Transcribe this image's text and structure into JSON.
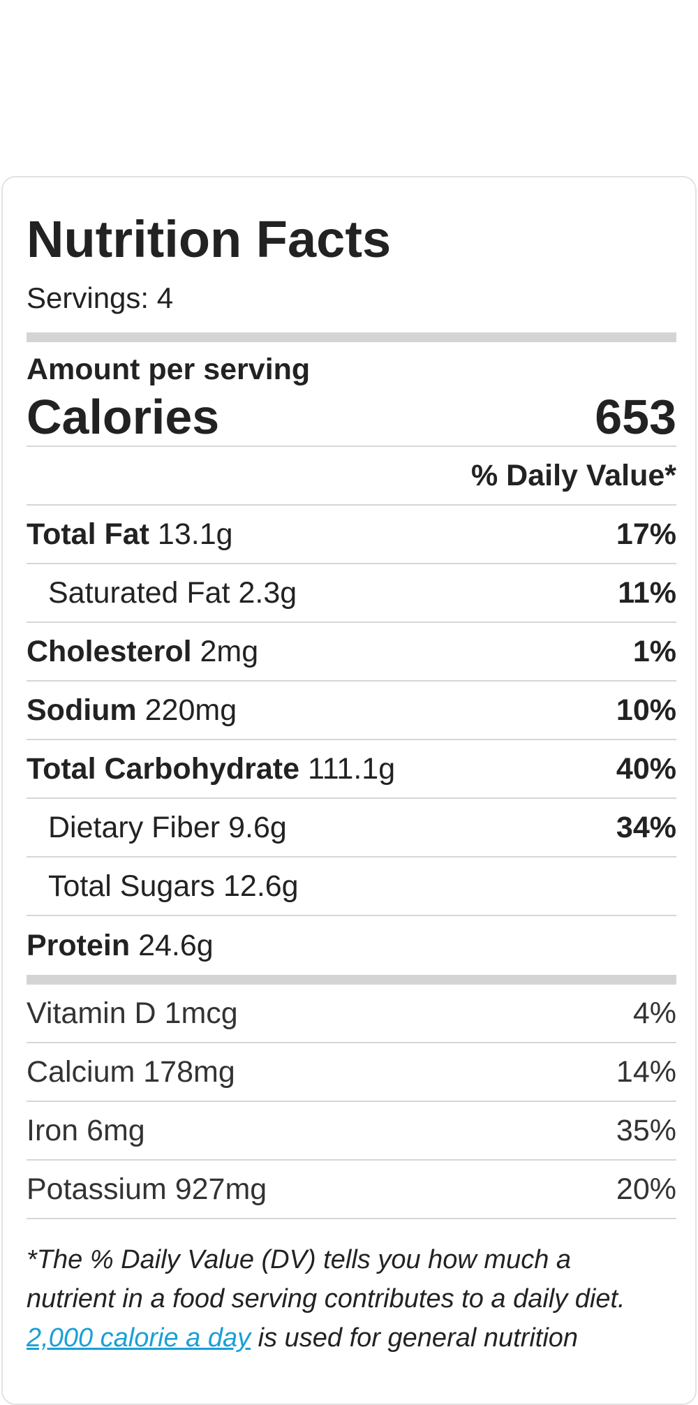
{
  "label": {
    "title": "Nutrition Facts",
    "servings": "Servings: 4",
    "amount_per_serving": "Amount per serving",
    "calories_label": "Calories",
    "calories_value": "653",
    "daily_value_header": "% Daily Value*"
  },
  "nutrients": [
    {
      "name": "Total Fat",
      "amount": "13.1g",
      "pct": "17%"
    },
    {
      "name": "Saturated Fat",
      "amount": "2.3g",
      "pct": "11%"
    },
    {
      "name": "Cholesterol",
      "amount": "2mg",
      "pct": "1%"
    },
    {
      "name": "Sodium",
      "amount": "220mg",
      "pct": "10%"
    },
    {
      "name": "Total Carbohydrate",
      "amount": "111.1g",
      "pct": "40%"
    },
    {
      "name": "Dietary Fiber",
      "amount": "9.6g",
      "pct": "34%"
    },
    {
      "name": "Total Sugars",
      "amount": "12.6g",
      "pct": ""
    },
    {
      "name": "Protein",
      "amount": "24.6g",
      "pct": ""
    }
  ],
  "vitamins": [
    {
      "name": "Vitamin D",
      "amount": "1mcg",
      "pct": "4%"
    },
    {
      "name": "Calcium",
      "amount": "178mg",
      "pct": "14%"
    },
    {
      "name": "Iron",
      "amount": "6mg",
      "pct": "35%"
    },
    {
      "name": "Potassium",
      "amount": "927mg",
      "pct": "20%"
    }
  ],
  "footnote": {
    "line1": "*The % Daily Value (DV) tells you how much a",
    "line2": "nutrient in a food serving contributes to a daily diet.",
    "link_text": "2,000 calorie a day",
    "line3_rest": " is used for general nutrition"
  },
  "colors": {
    "rule": "#d6d6d6",
    "thick_bar": "#d4d4d4",
    "link": "#1a9fd6"
  }
}
